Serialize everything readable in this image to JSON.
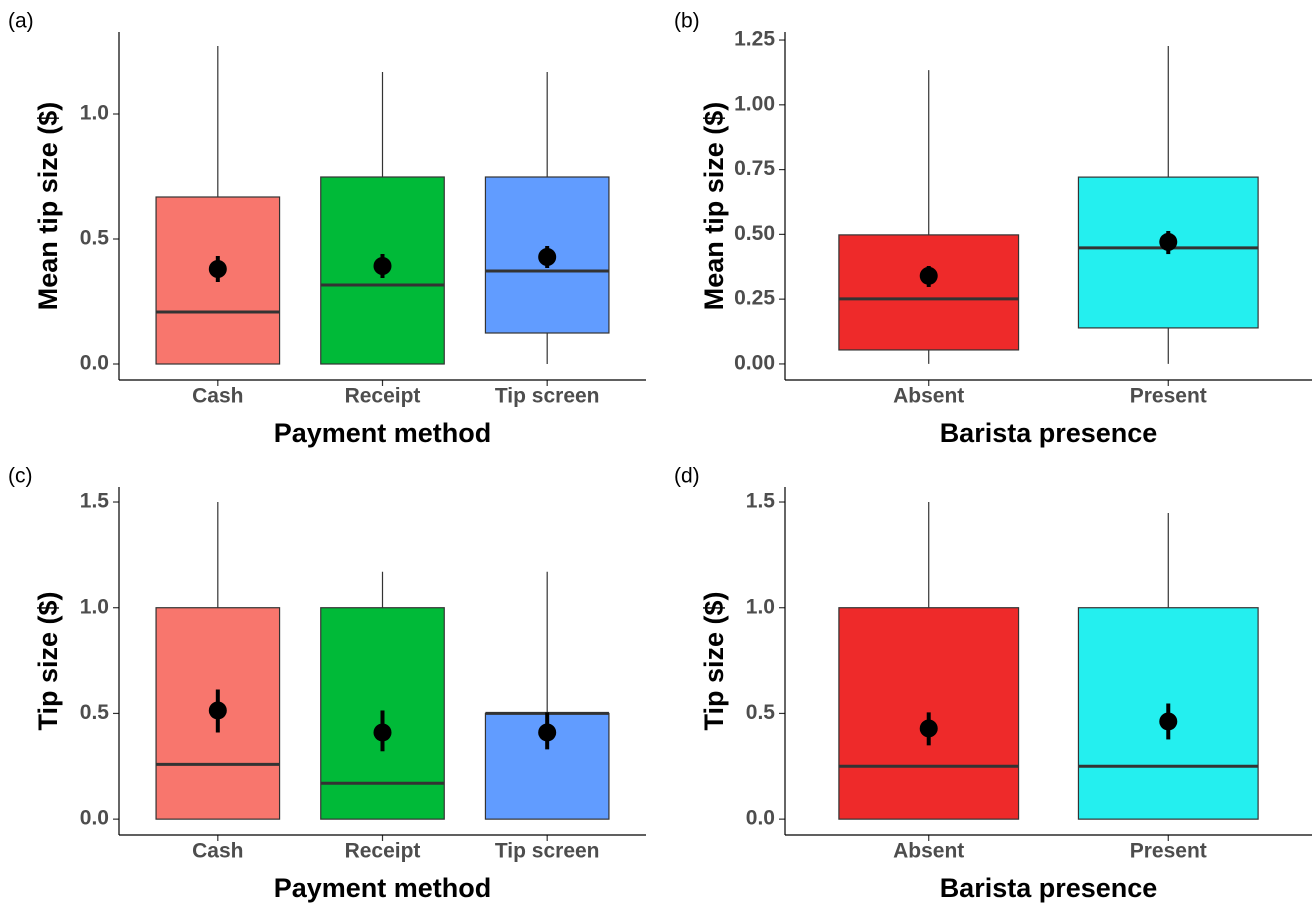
{
  "chart_data": [
    {
      "type": "box",
      "label": "(a)",
      "x_label": "Payment method",
      "y_label": "Mean tip size ($)",
      "categories": [
        "Cash",
        "Receipt",
        "Tip screen"
      ],
      "colors": [
        "#F8766D",
        "#00BA38",
        "#619CFF"
      ],
      "whisker_low": [
        0,
        0,
        0
      ],
      "q1": [
        0,
        0,
        0.124
      ],
      "median": [
        0.208,
        0.316,
        0.372
      ],
      "q3": [
        0.668,
        0.748,
        0.748
      ],
      "whisker_high": [
        1.272,
        1.168,
        1.168
      ],
      "mean": [
        0.38,
        0.392,
        0.428
      ],
      "mean_low": [
        0.328,
        0.344,
        0.384
      ],
      "mean_high": [
        0.432,
        0.44,
        0.472
      ],
      "ylim": [
        -0.064,
        1.328
      ],
      "yticks": [
        {
          "value": 0,
          "label": "0.0"
        },
        {
          "value": 0.5,
          "label": "0.5"
        },
        {
          "value": 1,
          "label": "1.0"
        }
      ]
    },
    {
      "type": "box",
      "label": "(b)",
      "x_label": "Barista presence",
      "y_label": "Mean tip size ($)",
      "categories": [
        "Absent",
        "Present"
      ],
      "colors": [
        "#EE2A2A",
        "#24EFEF"
      ],
      "whisker_low": [
        0,
        0
      ],
      "q1": [
        0.054,
        0.139
      ],
      "median": [
        0.251,
        0.448
      ],
      "q3": [
        0.498,
        0.721
      ],
      "whisker_high": [
        1.134,
        1.227
      ],
      "mean": [
        0.34,
        0.471
      ],
      "mean_low": [
        0.297,
        0.424
      ],
      "mean_high": [
        0.378,
        0.513
      ],
      "ylim": [
        -0.062,
        1.281
      ],
      "yticks": [
        {
          "value": 0,
          "label": "0.00"
        },
        {
          "value": 0.25,
          "label": "0.25"
        },
        {
          "value": 0.5,
          "label": "0.50"
        },
        {
          "value": 0.75,
          "label": "0.75"
        },
        {
          "value": 1,
          "label": "1.00"
        },
        {
          "value": 1.25,
          "label": "1.25"
        }
      ]
    },
    {
      "type": "box",
      "label": "(c)",
      "x_label": "Payment method",
      "y_label": "Tip size ($)",
      "categories": [
        "Cash",
        "Receipt",
        "Tip screen"
      ],
      "colors": [
        "#F8766D",
        "#00BA38",
        "#619CFF"
      ],
      "whisker_low": [
        0,
        0,
        0
      ],
      "q1": [
        0,
        0,
        0
      ],
      "median": [
        0.259,
        0.17,
        0.5
      ],
      "q3": [
        1,
        1,
        0.5
      ],
      "whisker_high": [
        1.5,
        1.17,
        1.17
      ],
      "mean": [
        0.514,
        0.41,
        0.41
      ],
      "mean_low": [
        0.41,
        0.321,
        0.33
      ],
      "mean_high": [
        0.613,
        0.514,
        0.505
      ],
      "ylim": [
        -0.075,
        1.571
      ],
      "yticks": [
        {
          "value": 0,
          "label": "0.0"
        },
        {
          "value": 0.5,
          "label": "0.5"
        },
        {
          "value": 1,
          "label": "1.0"
        },
        {
          "value": 1.5,
          "label": "1.5"
        }
      ]
    },
    {
      "type": "box",
      "label": "(d)",
      "x_label": "Barista presence",
      "y_label": "Tip size ($)",
      "categories": [
        "Absent",
        "Present"
      ],
      "colors": [
        "#EE2A2A",
        "#24EFEF"
      ],
      "whisker_low": [
        0,
        0
      ],
      "q1": [
        0,
        0
      ],
      "median": [
        0.25,
        0.25
      ],
      "q3": [
        1,
        1
      ],
      "whisker_high": [
        1.5,
        1.448
      ],
      "mean": [
        0.429,
        0.462
      ],
      "mean_low": [
        0.349,
        0.377
      ],
      "mean_high": [
        0.505,
        0.547
      ],
      "ylim": [
        -0.075,
        1.571
      ],
      "yticks": [
        {
          "value": 0,
          "label": "0.0"
        },
        {
          "value": 0.5,
          "label": "0.5"
        },
        {
          "value": 1,
          "label": "1.0"
        },
        {
          "value": 1.5,
          "label": "1.5"
        }
      ]
    }
  ]
}
